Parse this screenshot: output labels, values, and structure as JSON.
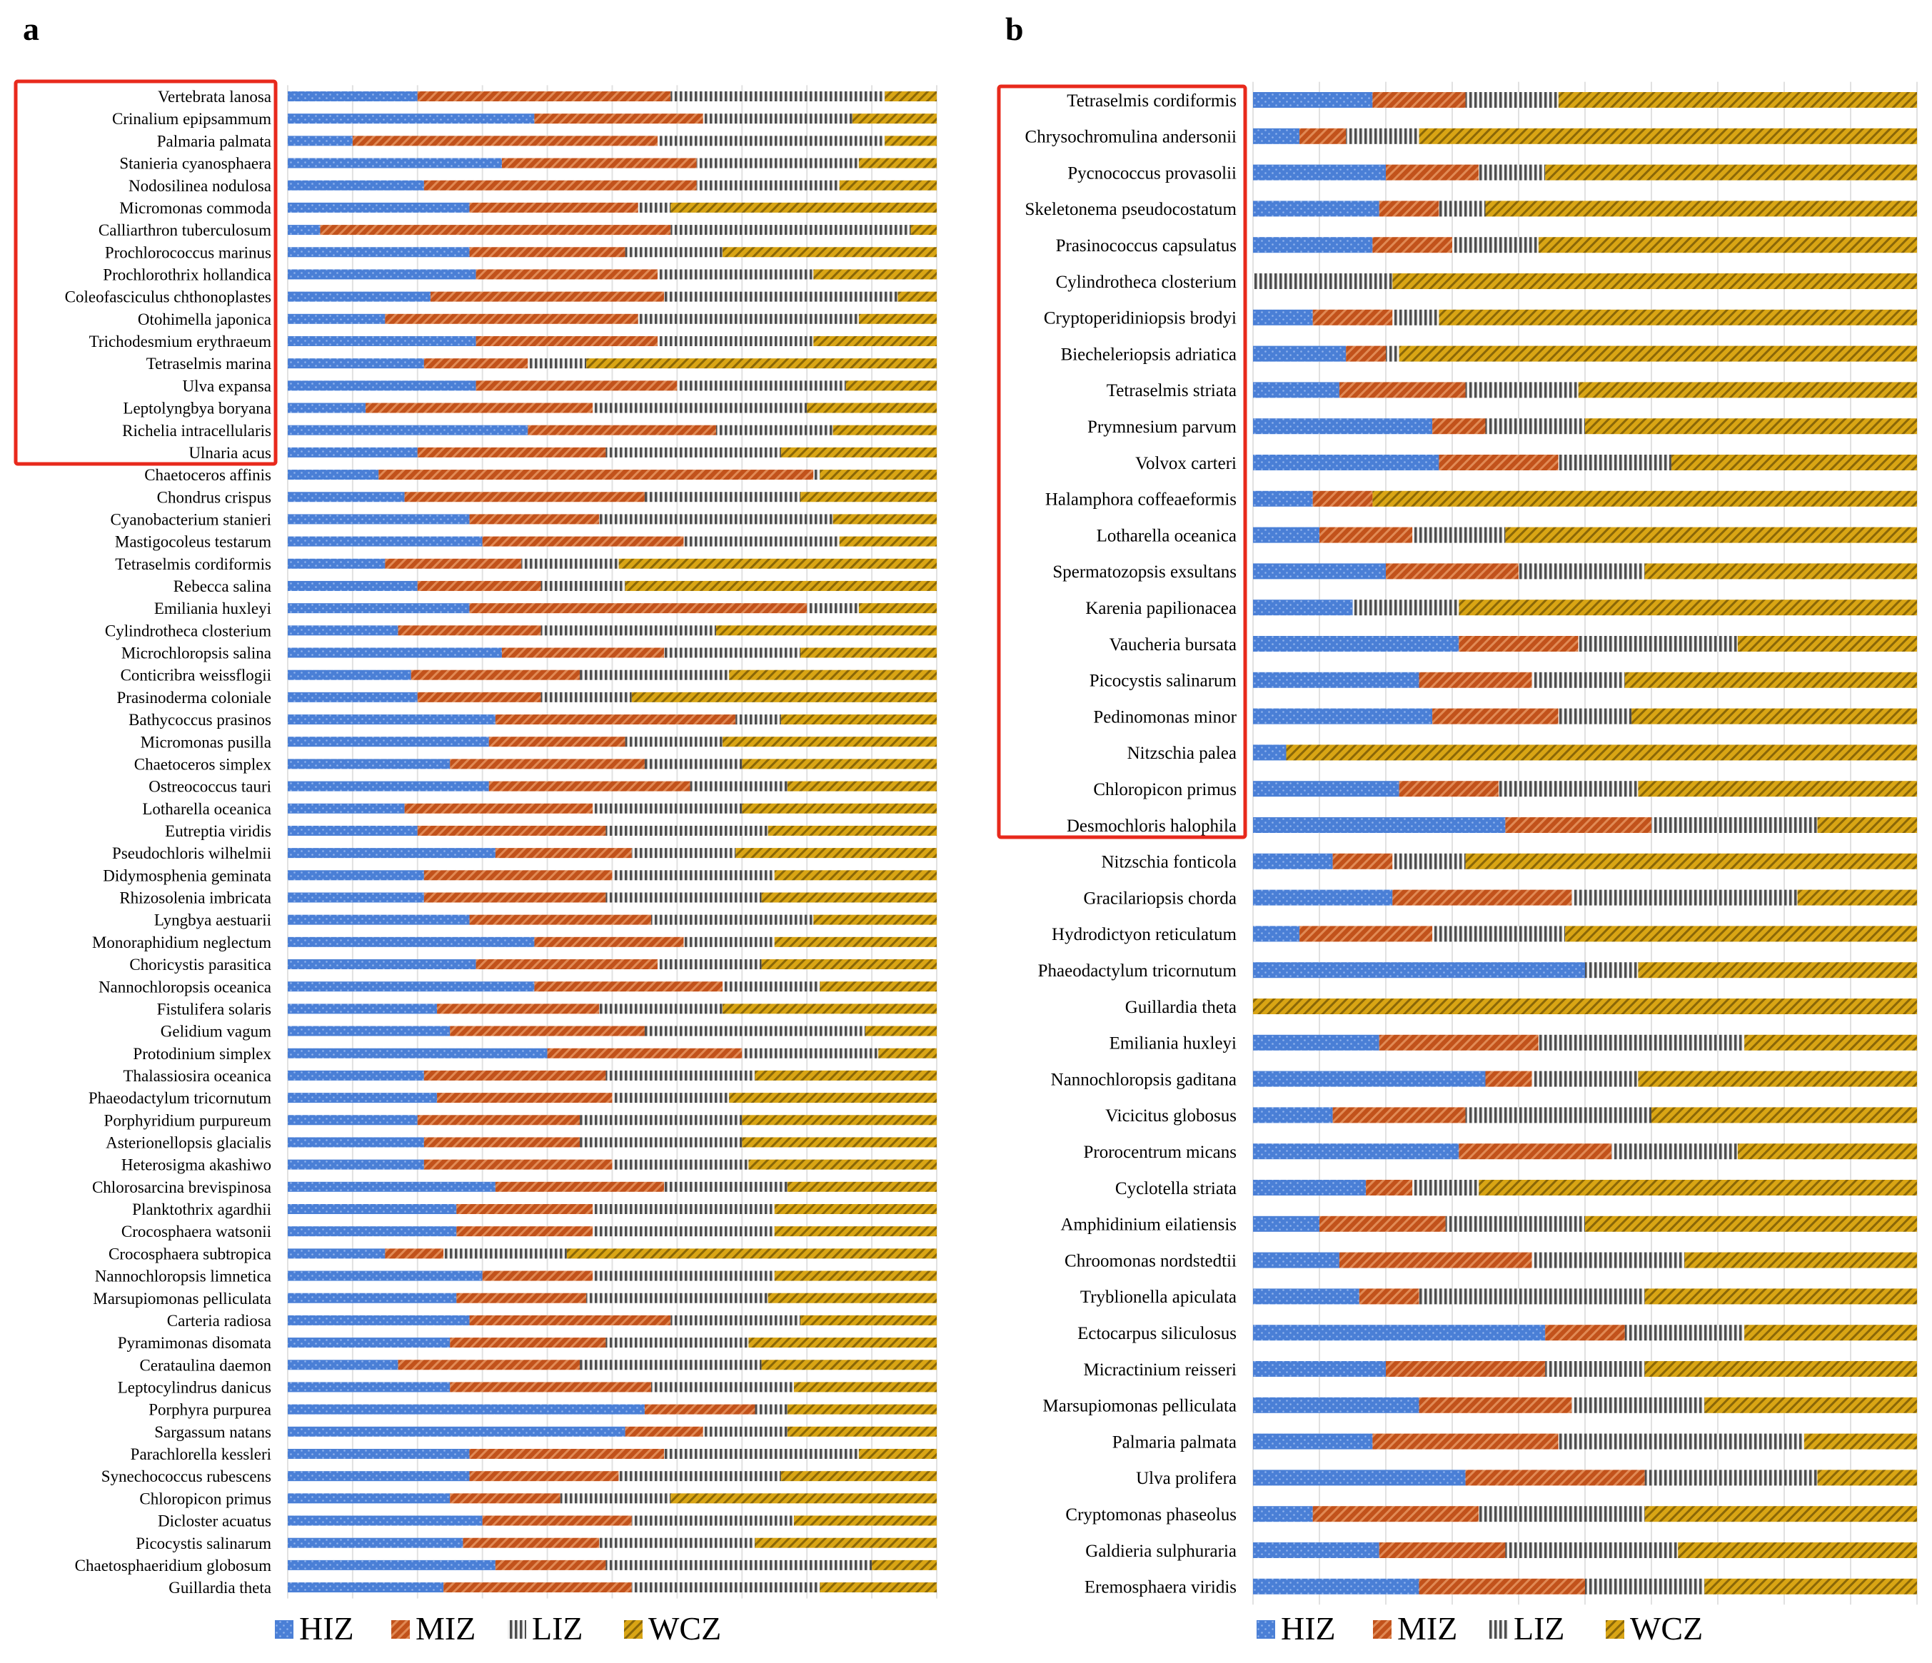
{
  "legend": [
    "HIZ",
    "MIZ",
    "LIZ",
    "WCZ"
  ],
  "colors": {
    "HIZ": "#4a7fd6",
    "MIZ": "#c2521b",
    "LIZ": "#6e6e6e",
    "WCZ": "#d9a514"
  },
  "chart_data": [
    {
      "panel": "a",
      "type": "bar",
      "orientation": "horizontal",
      "stacked": "percent",
      "xlim": [
        0,
        1
      ],
      "grid": true,
      "legend_position": "bottom",
      "highlighted_count": 17,
      "categories": [
        "Vertebrata lanosa",
        "Crinalium epipsammum",
        "Palmaria palmata",
        "Stanieria cyanosphaera",
        "Nodosilinea nodulosa",
        "Micromonas commoda",
        "Calliarthron tuberculosum",
        "Prochlorococcus marinus",
        "Prochlorothrix hollandica",
        "Coleofasciculus chthonoplastes",
        "Otohimella japonica",
        "Trichodesmium erythraeum",
        "Tetraselmis marina",
        "Ulva expansa",
        "Leptolyngbya boryana",
        "Richelia intracellularis",
        "Ulnaria acus",
        "Chaetoceros affinis",
        "Chondrus crispus",
        "Cyanobacterium stanieri",
        "Mastigocoleus testarum",
        "Tetraselmis cordiformis",
        "Rebecca salina",
        "Emiliania huxleyi",
        "Cylindrotheca closterium",
        "Microchloropsis salina",
        "Conticribra weissflogii",
        "Prasinoderma coloniale",
        "Bathycoccus prasinos",
        "Micromonas pusilla",
        "Chaetoceros simplex",
        "Ostreococcus tauri",
        "Lotharella oceanica",
        "Eutreptia viridis",
        "Pseudochloris wilhelmii",
        "Didymosphenia geminata",
        "Rhizosolenia imbricata",
        "Lyngbya aestuarii",
        "Monoraphidium neglectum",
        "Choricystis parasitica",
        "Nannochloropsis oceanica",
        "Fistulifera solaris",
        "Gelidium vagum",
        "Protodinium simplex",
        "Thalassiosira oceanica",
        "Phaeodactylum tricornutum",
        "Porphyridium purpureum",
        "Asterionellopsis glacialis",
        "Heterosigma akashiwo",
        "Chlorosarcina brevispinosa",
        "Planktothrix agardhii",
        "Crocosphaera watsonii",
        "Crocosphaera subtropica",
        "Nannochloropsis limnetica",
        "Marsupiomonas pelliculata",
        "Carteria radiosa",
        "Pyramimonas disomata",
        "Cerataulina daemon",
        "Leptocylindrus danicus",
        "Porphyra purpurea",
        "Sargassum natans",
        "Parachlorella kessleri",
        "Synechococcus rubescens",
        "Chloropicon primus",
        "Dicloster acuatus",
        "Picocystis salinarum",
        "Chaetosphaeridium globosum",
        "Guillardia theta"
      ],
      "series": [
        {
          "name": "HIZ",
          "values": [
            0.2,
            0.38,
            0.1,
            0.33,
            0.21,
            0.28,
            0.05,
            0.28,
            0.29,
            0.22,
            0.15,
            0.29,
            0.21,
            0.29,
            0.12,
            0.37,
            0.2,
            0.14,
            0.18,
            0.28,
            0.3,
            0.15,
            0.2,
            0.28,
            0.17,
            0.33,
            0.19,
            0.2,
            0.32,
            0.31,
            0.25,
            0.31,
            0.18,
            0.2,
            0.32,
            0.21,
            0.21,
            0.28,
            0.38,
            0.29,
            0.38,
            0.23,
            0.25,
            0.4,
            0.21,
            0.23,
            0.2,
            0.21,
            0.21,
            0.32,
            0.26,
            0.26,
            0.15,
            0.3,
            0.26,
            0.28,
            0.25,
            0.17,
            0.25,
            0.55,
            0.52,
            0.28,
            0.28,
            0.25,
            0.3,
            0.27,
            0.32,
            0.24
          ]
        },
        {
          "name": "MIZ",
          "values": [
            0.39,
            0.26,
            0.47,
            0.3,
            0.42,
            0.26,
            0.54,
            0.24,
            0.28,
            0.36,
            0.39,
            0.28,
            0.16,
            0.31,
            0.35,
            0.29,
            0.29,
            0.67,
            0.37,
            0.2,
            0.31,
            0.21,
            0.19,
            0.52,
            0.22,
            0.25,
            0.26,
            0.19,
            0.37,
            0.21,
            0.3,
            0.31,
            0.29,
            0.29,
            0.21,
            0.29,
            0.28,
            0.28,
            0.23,
            0.28,
            0.29,
            0.25,
            0.3,
            0.3,
            0.28,
            0.27,
            0.25,
            0.24,
            0.29,
            0.26,
            0.21,
            0.21,
            0.09,
            0.17,
            0.2,
            0.31,
            0.24,
            0.28,
            0.31,
            0.17,
            0.12,
            0.3,
            0.23,
            0.17,
            0.23,
            0.21,
            0.17,
            0.29
          ]
        },
        {
          "name": "LIZ",
          "values": [
            0.33,
            0.23,
            0.35,
            0.25,
            0.22,
            0.05,
            0.37,
            0.15,
            0.24,
            0.36,
            0.34,
            0.24,
            0.09,
            0.26,
            0.33,
            0.18,
            0.27,
            0.01,
            0.24,
            0.36,
            0.24,
            0.15,
            0.13,
            0.08,
            0.27,
            0.21,
            0.23,
            0.14,
            0.07,
            0.15,
            0.15,
            0.15,
            0.23,
            0.25,
            0.16,
            0.25,
            0.24,
            0.25,
            0.14,
            0.16,
            0.15,
            0.19,
            0.34,
            0.21,
            0.23,
            0.18,
            0.25,
            0.25,
            0.21,
            0.19,
            0.28,
            0.28,
            0.19,
            0.28,
            0.28,
            0.2,
            0.22,
            0.28,
            0.22,
            0.05,
            0.13,
            0.3,
            0.25,
            0.17,
            0.25,
            0.24,
            0.41,
            0.29
          ]
        },
        {
          "name": "WCZ",
          "values": [
            0.08,
            0.13,
            0.08,
            0.12,
            0.15,
            0.41,
            0.04,
            0.33,
            0.19,
            0.06,
            0.12,
            0.19,
            0.54,
            0.14,
            0.2,
            0.16,
            0.24,
            0.18,
            0.21,
            0.16,
            0.15,
            0.49,
            0.48,
            0.12,
            0.34,
            0.21,
            0.32,
            0.47,
            0.24,
            0.33,
            0.3,
            0.23,
            0.3,
            0.26,
            0.31,
            0.25,
            0.27,
            0.19,
            0.25,
            0.27,
            0.18,
            0.33,
            0.11,
            0.09,
            0.28,
            0.32,
            0.3,
            0.3,
            0.29,
            0.23,
            0.25,
            0.25,
            0.57,
            0.25,
            0.26,
            0.21,
            0.29,
            0.27,
            0.22,
            0.23,
            0.23,
            0.12,
            0.24,
            0.41,
            0.22,
            0.28,
            0.1,
            0.18
          ]
        }
      ]
    },
    {
      "panel": "b",
      "type": "bar",
      "orientation": "horizontal",
      "stacked": "percent",
      "xlim": [
        0,
        1
      ],
      "grid": true,
      "legend_position": "bottom",
      "highlighted_count": 21,
      "categories": [
        "Tetraselmis cordiformis",
        "Chrysochromulina andersonii",
        "Pycnococcus provasolii",
        "Skeletonema pseudocostatum",
        "Prasinococcus capsulatus",
        "Cylindrotheca closterium",
        "Cryptoperidiniopsis brodyi",
        "Biecheleriopsis adriatica",
        "Tetraselmis striata",
        "Prymnesium parvum",
        "Volvox carteri",
        "Halamphora coffeaeformis",
        "Lotharella oceanica",
        "Spermatozopsis exsultans",
        "Karenia papilionacea",
        "Vaucheria bursata",
        "Picocystis salinarum",
        "Pedinomonas minor",
        "Nitzschia palea",
        "Chloropicon primus",
        "Desmochloris halophila",
        "Nitzschia fonticola",
        "Gracilariopsis chorda",
        "Hydrodictyon reticulatum",
        "Phaeodactylum tricornutum",
        "Guillardia theta",
        "Emiliania huxleyi",
        "Nannochloropsis gaditana",
        "Vicicitus globosus",
        "Prorocentrum micans",
        "Cyclotella striata",
        "Amphidinium eilatiensis",
        "Chroomonas nordstedtii",
        "Tryblionella apiculata",
        "Ectocarpus siliculosus",
        "Micractinium reisseri",
        "Marsupiomonas pelliculata",
        "Palmaria palmata",
        "Ulva prolifera",
        "Cryptomonas phaseolus",
        "Galdieria sulphuraria",
        "Eremosphaera viridis"
      ],
      "series": [
        {
          "name": "HIZ",
          "values": [
            0.18,
            0.07,
            0.2,
            0.19,
            0.18,
            0.0,
            0.09,
            0.14,
            0.13,
            0.27,
            0.28,
            0.09,
            0.1,
            0.2,
            0.15,
            0.31,
            0.25,
            0.27,
            0.05,
            0.22,
            0.38,
            0.12,
            0.21,
            0.07,
            0.5,
            0.0,
            0.19,
            0.35,
            0.12,
            0.31,
            0.17,
            0.1,
            0.13,
            0.16,
            0.44,
            0.2,
            0.25,
            0.18,
            0.32,
            0.09,
            0.19,
            0.25
          ]
        },
        {
          "name": "MIZ",
          "values": [
            0.14,
            0.07,
            0.14,
            0.09,
            0.12,
            0.0,
            0.12,
            0.06,
            0.19,
            0.08,
            0.18,
            0.09,
            0.14,
            0.2,
            0.0,
            0.18,
            0.17,
            0.19,
            0.0,
            0.15,
            0.22,
            0.09,
            0.27,
            0.2,
            0.0,
            0.0,
            0.24,
            0.07,
            0.2,
            0.23,
            0.07,
            0.19,
            0.29,
            0.09,
            0.12,
            0.24,
            0.23,
            0.28,
            0.27,
            0.25,
            0.19,
            0.25
          ]
        },
        {
          "name": "LIZ",
          "values": [
            0.14,
            0.11,
            0.1,
            0.07,
            0.13,
            0.21,
            0.07,
            0.02,
            0.17,
            0.15,
            0.17,
            0.0,
            0.14,
            0.19,
            0.16,
            0.24,
            0.14,
            0.11,
            0.0,
            0.21,
            0.25,
            0.11,
            0.34,
            0.2,
            0.08,
            0.0,
            0.31,
            0.16,
            0.28,
            0.19,
            0.1,
            0.21,
            0.23,
            0.34,
            0.18,
            0.15,
            0.2,
            0.37,
            0.26,
            0.25,
            0.26,
            0.18
          ]
        },
        {
          "name": "WCZ",
          "values": [
            0.54,
            0.75,
            0.56,
            0.65,
            0.57,
            0.79,
            0.72,
            0.78,
            0.51,
            0.5,
            0.37,
            0.82,
            0.62,
            0.41,
            0.69,
            0.27,
            0.44,
            0.43,
            0.95,
            0.42,
            0.15,
            0.68,
            0.18,
            0.53,
            0.42,
            1.0,
            0.26,
            0.42,
            0.4,
            0.27,
            0.66,
            0.5,
            0.35,
            0.41,
            0.26,
            0.41,
            0.32,
            0.17,
            0.15,
            0.41,
            0.36,
            0.32
          ]
        }
      ]
    }
  ]
}
